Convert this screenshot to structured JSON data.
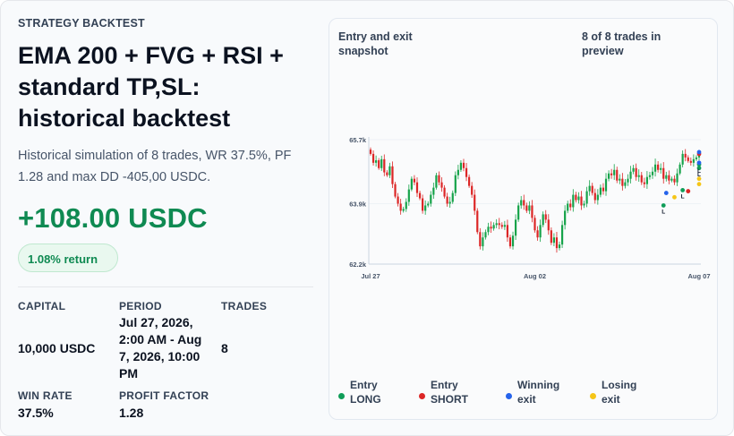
{
  "header": {
    "eyebrow": "STRATEGY BACKTEST",
    "title": "EMA 200 + FVG + RSI + standard TP,SL: historical backtest",
    "description": "Historical simulation of 8 trades, WR 37.5%, PF 1.28 and max DD -405,00 USDC."
  },
  "result": {
    "pnl": "+108.00 USDC",
    "return_pct": "1.08% return"
  },
  "stats": {
    "capital_label": "CAPITAL",
    "capital_value": "10,000 USDC",
    "period_label": "PERIOD",
    "period_value": "Jul 27, 2026, 2:00 AM - Aug 7, 2026, 10:00 PM",
    "trades_label": "TRADES",
    "trades_value": "8",
    "winrate_label": "WIN RATE",
    "winrate_value": "37.5%",
    "pf_label": "PROFIT FACTOR",
    "pf_value": "1.28"
  },
  "chart_panel": {
    "title": "Entry and exit snapshot",
    "count": "8 of 8 trades in preview",
    "legend": [
      {
        "label": "Entry LONG",
        "color": "#0f9d58"
      },
      {
        "label": "Entry SHORT",
        "color": "#dc2626"
      },
      {
        "label": "Winning exit",
        "color": "#2563eb"
      },
      {
        "label": "Losing exit",
        "color": "#f5c518"
      }
    ]
  },
  "chart_data": {
    "type": "candlestick",
    "ytick_labels": [
      "65.7k",
      "63.9k",
      "62.2k"
    ],
    "ytick_values": [
      65700,
      63900,
      62200
    ],
    "ylim": [
      62200,
      65700
    ],
    "xtick_labels": [
      "Jul 27",
      "Aug 02",
      "Aug 07"
    ],
    "xtick_index": [
      0,
      60,
      120
    ],
    "up_color": "#16a34a",
    "down_color": "#dc2626",
    "closes": [
      65300,
      65050,
      65120,
      64900,
      65150,
      64780,
      64700,
      64950,
      64450,
      64100,
      63900,
      63700,
      63750,
      63950,
      64300,
      64600,
      64500,
      64200,
      64050,
      63700,
      63850,
      63900,
      64150,
      64350,
      64700,
      64500,
      64350,
      64100,
      63900,
      63950,
      64200,
      64700,
      64850,
      65050,
      64900,
      64650,
      64400,
      64150,
      63700,
      63100,
      62700,
      62950,
      63100,
      63250,
      63200,
      63300,
      63350,
      63300,
      63250,
      63300,
      62950,
      62700,
      63000,
      63450,
      63850,
      64000,
      63850,
      63700,
      63850,
      63500,
      63150,
      62950,
      63300,
      63600,
      63450,
      63150,
      62800,
      62950,
      62650,
      62750,
      63300,
      63700,
      63900,
      63800,
      64150,
      64000,
      64100,
      63850,
      63900,
      64250,
      64400,
      64200,
      64000,
      64150,
      64350,
      64250,
      64600,
      64750,
      64700,
      64850,
      64550,
      64600,
      64400,
      64500,
      64600,
      64800,
      64900,
      64650,
      64700,
      64500,
      64450,
      64650,
      64700,
      64800,
      65000,
      64850,
      64900,
      64600,
      64700,
      64550,
      64600,
      64500,
      64750,
      65000,
      65300,
      65200,
      65100,
      65050,
      65150,
      65200,
      65300
    ],
    "markers": [
      {
        "kind": "entry_long",
        "i": 107,
        "price": 63850,
        "tag": "L"
      },
      {
        "kind": "entry_long",
        "i": 114,
        "price": 64280,
        "tag": "L"
      },
      {
        "kind": "entry_long",
        "i": 126,
        "price": 64900,
        "tag": "L"
      },
      {
        "kind": "entry_long",
        "i": 130,
        "price": 65000,
        "tag": "L"
      },
      {
        "kind": "entry_short",
        "i": 116,
        "price": 64250,
        "tag": ""
      },
      {
        "kind": "entry_short",
        "i": 129,
        "price": 65300,
        "tag": ""
      },
      {
        "kind": "exit_win",
        "i": 108,
        "price": 64200,
        "tag": ""
      },
      {
        "kind": "exit_win",
        "i": 131,
        "price": 65350,
        "tag": ""
      },
      {
        "kind": "exit_win",
        "i": 132,
        "price": 65050,
        "tag": ""
      },
      {
        "kind": "exit_lose",
        "i": 111,
        "price": 64080,
        "tag": ""
      },
      {
        "kind": "exit_lose",
        "i": 124,
        "price": 64450,
        "tag": ""
      },
      {
        "kind": "exit_lose",
        "i": 120,
        "price": 64600,
        "tag": ""
      }
    ]
  }
}
